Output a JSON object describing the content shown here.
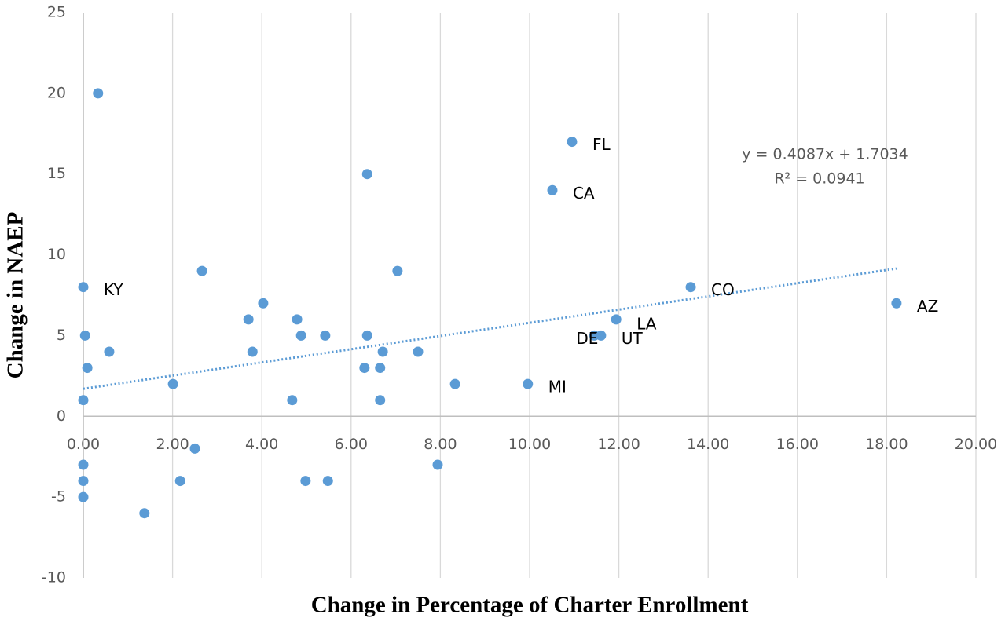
{
  "chart_data": {
    "type": "scatter",
    "xlabel": "Change in Percentage of Charter Enrollment",
    "ylabel": "Change in NAEP",
    "color": "#5b9bd5",
    "x": [
      0.33,
      6.36,
      10.95,
      10.51,
      0,
      2.66,
      7.04,
      4.03,
      3.7,
      4.79,
      0.04,
      4.88,
      5.42,
      6.36,
      0.58,
      3.79,
      6.71,
      7.5,
      0.09,
      6.3,
      6.65,
      2.01,
      8.33,
      9.96,
      0,
      4.68,
      6.65,
      13.61,
      18.22,
      11.94,
      11.45,
      11.6,
      2.5,
      0,
      7.94,
      0,
      2.17,
      4.98,
      5.48,
      0,
      1.37
    ],
    "y": [
      20,
      15,
      17,
      14,
      8,
      9,
      9,
      7,
      6,
      6,
      5,
      5,
      5,
      5,
      4,
      4,
      4,
      4,
      3,
      3,
      3,
      2,
      2,
      2,
      1,
      1,
      1,
      8,
      7,
      6,
      5,
      5,
      -2,
      -3,
      -3,
      -4,
      -4,
      -4,
      -4,
      -5,
      -6
    ],
    "labels": [
      null,
      null,
      "FL",
      "CA",
      "KY",
      null,
      null,
      null,
      null,
      null,
      null,
      null,
      null,
      null,
      null,
      null,
      null,
      null,
      null,
      null,
      null,
      null,
      null,
      "MI",
      null,
      null,
      null,
      "CO",
      "AZ",
      "LA",
      "DE",
      "UT",
      null,
      null,
      null,
      null,
      null,
      null,
      null,
      null,
      null
    ],
    "trendline": {
      "slope": 0.4087,
      "intercept": 1.7034,
      "label": "y = 0.4087x + 1.7034",
      "r2_label": "R² = 0.0941"
    },
    "xlim": [
      0,
      20
    ],
    "xticks": [
      {
        "value": 0,
        "label": "0.00"
      },
      {
        "value": 2,
        "label": "2.00"
      },
      {
        "value": 4,
        "label": "4.00"
      },
      {
        "value": 6,
        "label": "6.00"
      },
      {
        "value": 8,
        "label": "8.00"
      },
      {
        "value": 10,
        "label": "10.00"
      },
      {
        "value": 12,
        "label": "12.00"
      },
      {
        "value": 14,
        "label": "14.00"
      },
      {
        "value": 16,
        "label": "16.00"
      },
      {
        "value": 18,
        "label": "18.00"
      },
      {
        "value": 20,
        "label": "20.00"
      }
    ],
    "ylim": [
      -10,
      25
    ],
    "yticks": [
      -10,
      -5,
      0,
      5,
      10,
      15,
      20,
      25
    ],
    "grid": true
  }
}
